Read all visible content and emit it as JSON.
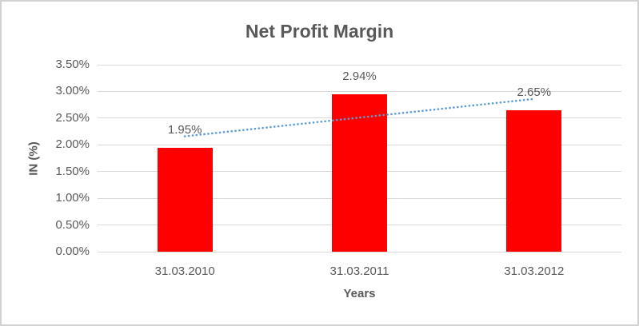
{
  "window": {
    "background": "#FFFFFF",
    "border_color": "#D2D2D2"
  },
  "chart_data": {
    "type": "bar",
    "title": "Net Profit Margin",
    "categories": [
      "31.03.2010",
      "31.03.2011",
      "31.03.2012"
    ],
    "series": [
      {
        "name": "Net Profit Margin",
        "values": [
          1.95,
          2.94,
          2.65
        ]
      }
    ],
    "data_labels": [
      "1.95%",
      "2.94%",
      "2.65%"
    ],
    "xlabel": "Years",
    "ylabel": "IN (%)",
    "ylim": [
      0,
      3.5
    ],
    "ytick_step": 0.5,
    "ytick_labels": [
      "0.00%",
      "0.50%",
      "1.00%",
      "1.50%",
      "2.00%",
      "2.50%",
      "3.00%",
      "3.50%"
    ],
    "grid": true,
    "legend": "none",
    "bar_color": "#FF0000",
    "text_color": "#595959",
    "gridline_color": "#D9D9D9",
    "trendline": {
      "type": "linear",
      "style": "dotted",
      "color": "#5B9BD5",
      "value_start": 2.16,
      "value_end": 2.86
    }
  }
}
